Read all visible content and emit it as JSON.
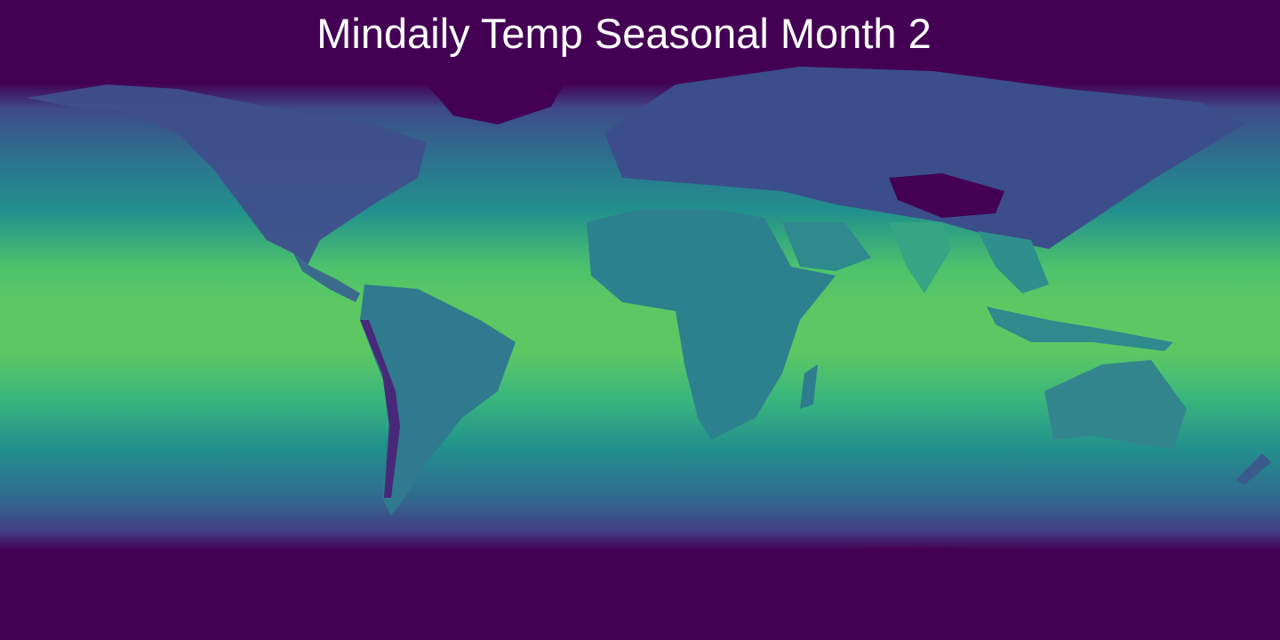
{
  "title": "Mindaily Temp Seasonal Month 2",
  "map": {
    "projection": "equirectangular",
    "variable": "minimum daily temperature",
    "colormap": "viridis",
    "colors": {
      "polar": "#440154",
      "cold": "#3b528b",
      "mid": "#21908d",
      "warm": "#5dc863"
    }
  }
}
